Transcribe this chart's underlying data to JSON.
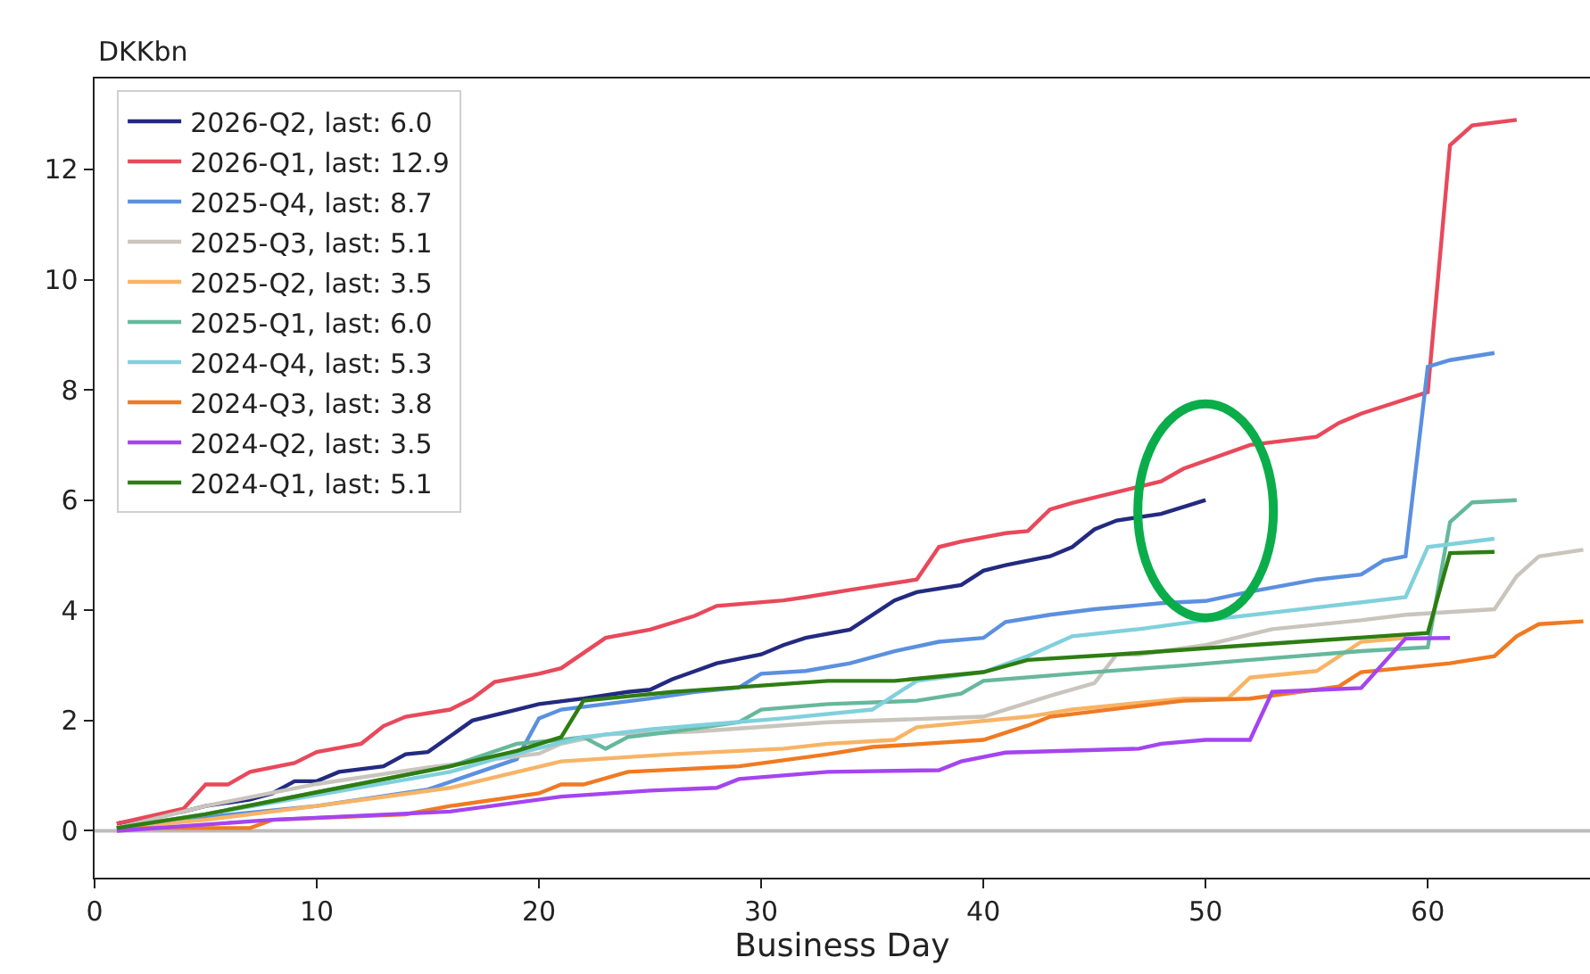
{
  "chart_data": {
    "type": "line",
    "xlabel": "Business Day",
    "ylabel": "DKKbn",
    "xlim": [
      0,
      67.3
    ],
    "ylim": [
      -0.85,
      13.65
    ],
    "xticks": [
      0,
      10,
      20,
      30,
      40,
      50,
      60
    ],
    "yticks": [
      0,
      2,
      4,
      6,
      8,
      10,
      12
    ],
    "grid": false,
    "legend": "top left",
    "line_style": "solid",
    "marker": "none",
    "ref_lines": [
      {
        "axis": "y",
        "value": 0,
        "color": "#bbbbbb"
      }
    ],
    "series": [
      {
        "name": "2026-Q2, last: 6.0",
        "color": "#232a80",
        "x": [
          1,
          4,
          5,
          7,
          8,
          9,
          10,
          11,
          13,
          14,
          15,
          17,
          19,
          20,
          22,
          24,
          25,
          26,
          28,
          30,
          31,
          32,
          34,
          36,
          37,
          39,
          40,
          41,
          43,
          44,
          45,
          46,
          48,
          50
        ],
        "values": [
          0.13,
          0.35,
          0.45,
          0.57,
          0.68,
          0.9,
          0.9,
          1.07,
          1.17,
          1.39,
          1.43,
          2.0,
          2.2,
          2.3,
          2.4,
          2.52,
          2.56,
          2.75,
          3.04,
          3.2,
          3.37,
          3.5,
          3.65,
          4.18,
          4.33,
          4.46,
          4.72,
          4.82,
          4.98,
          5.15,
          5.47,
          5.63,
          5.75,
          6.0
        ]
      },
      {
        "name": "2026-Q1, last: 12.9",
        "color": "#e8495b",
        "x": [
          1,
          4,
          5,
          6,
          7,
          9,
          10,
          12,
          13,
          14,
          16,
          17,
          18,
          20,
          21,
          23,
          25,
          27,
          28,
          31,
          32,
          34,
          37,
          38,
          39,
          41,
          42,
          43,
          44,
          48,
          49,
          52,
          55,
          56,
          57,
          60,
          61,
          62,
          64
        ],
        "values": [
          0.13,
          0.4,
          0.84,
          0.84,
          1.07,
          1.23,
          1.43,
          1.58,
          1.9,
          2.07,
          2.2,
          2.4,
          2.7,
          2.85,
          2.95,
          3.5,
          3.65,
          3.9,
          4.08,
          4.18,
          4.24,
          4.37,
          4.56,
          5.15,
          5.25,
          5.4,
          5.44,
          5.83,
          5.95,
          6.34,
          6.57,
          7.0,
          7.15,
          7.4,
          7.57,
          7.96,
          12.44,
          12.8,
          12.9
        ]
      },
      {
        "name": "2025-Q4, last: 8.7",
        "color": "#5b90e0",
        "x": [
          1,
          5,
          10,
          15,
          19,
          20,
          21,
          23,
          25,
          27,
          29,
          30,
          32,
          34,
          36,
          38,
          40,
          41,
          43,
          45,
          48,
          50,
          52,
          55,
          57,
          58,
          59,
          60,
          61,
          63
        ],
        "values": [
          0.05,
          0.25,
          0.45,
          0.75,
          1.3,
          2.04,
          2.2,
          2.3,
          2.4,
          2.52,
          2.6,
          2.85,
          2.9,
          3.04,
          3.26,
          3.43,
          3.5,
          3.79,
          3.92,
          4.02,
          4.13,
          4.17,
          4.34,
          4.56,
          4.65,
          4.9,
          4.98,
          8.42,
          8.54,
          8.67
        ]
      },
      {
        "name": "2025-Q3, last: 5.1",
        "color": "#c9c5bd",
        "x": [
          1,
          5,
          10,
          15,
          20,
          21,
          23,
          27,
          33,
          40,
          41,
          43,
          45,
          46,
          47,
          50,
          53,
          57,
          59,
          63,
          64,
          65,
          67
        ],
        "values": [
          0.05,
          0.45,
          0.85,
          1.15,
          1.4,
          1.58,
          1.75,
          1.8,
          1.97,
          2.07,
          2.2,
          2.45,
          2.68,
          3.2,
          3.2,
          3.37,
          3.66,
          3.82,
          3.92,
          4.02,
          4.62,
          4.98,
          5.1
        ]
      },
      {
        "name": "2025-Q2, last: 3.5",
        "color": "#f7b466",
        "x": [
          1,
          5,
          10,
          16,
          21,
          26,
          31,
          33,
          36,
          37,
          42,
          44,
          49,
          51,
          52,
          55,
          57,
          59
        ],
        "values": [
          0.05,
          0.2,
          0.45,
          0.78,
          1.26,
          1.39,
          1.49,
          1.58,
          1.65,
          1.88,
          2.07,
          2.2,
          2.4,
          2.4,
          2.78,
          2.9,
          3.43,
          3.5
        ]
      },
      {
        "name": "2025-Q1, last: 6.0",
        "color": "#66b89c",
        "x": [
          1,
          5,
          10,
          16,
          19,
          21,
          22,
          23,
          24,
          26,
          29,
          30,
          33,
          37,
          39,
          40,
          44,
          49,
          52,
          57,
          60,
          61,
          62,
          64
        ],
        "values": [
          0.05,
          0.3,
          0.7,
          1.17,
          1.58,
          1.65,
          1.7,
          1.49,
          1.7,
          1.8,
          1.97,
          2.2,
          2.3,
          2.36,
          2.49,
          2.72,
          2.85,
          3.0,
          3.1,
          3.26,
          3.33,
          5.6,
          5.96,
          6.0
        ]
      },
      {
        "name": "2024-Q4, last: 5.3",
        "color": "#80d0dc",
        "x": [
          1,
          5,
          10,
          16,
          18,
          22,
          25,
          27,
          31,
          35,
          37,
          40,
          42,
          44,
          47,
          50,
          59,
          60,
          63
        ],
        "values": [
          0.05,
          0.3,
          0.65,
          1.07,
          1.3,
          1.7,
          1.84,
          1.91,
          2.04,
          2.2,
          2.72,
          2.88,
          3.17,
          3.53,
          3.66,
          3.82,
          4.24,
          5.15,
          5.3
        ]
      },
      {
        "name": "2024-Q3, last: 3.8",
        "color": "#f07a22",
        "x": [
          1,
          7,
          8,
          14,
          16,
          20,
          21,
          22,
          24,
          29,
          33,
          35,
          40,
          42,
          43,
          49,
          52,
          56,
          57,
          61,
          63,
          64,
          65,
          67
        ],
        "values": [
          0.05,
          0.05,
          0.2,
          0.3,
          0.45,
          0.68,
          0.84,
          0.84,
          1.07,
          1.17,
          1.39,
          1.52,
          1.65,
          1.91,
          2.07,
          2.36,
          2.4,
          2.62,
          2.88,
          3.04,
          3.17,
          3.53,
          3.75,
          3.8
        ]
      },
      {
        "name": "2024-Q2, last: 3.5",
        "color": "#a445f0",
        "x": [
          1,
          8,
          16,
          21,
          25,
          28,
          29,
          33,
          38,
          39,
          41,
          47,
          48,
          50,
          52,
          53,
          57,
          59,
          61
        ],
        "values": [
          0.0,
          0.2,
          0.35,
          0.62,
          0.73,
          0.78,
          0.94,
          1.07,
          1.1,
          1.26,
          1.42,
          1.49,
          1.58,
          1.65,
          1.65,
          2.52,
          2.59,
          3.49,
          3.5
        ]
      },
      {
        "name": "2024-Q1, last: 5.1",
        "color": "#2e7d12",
        "x": [
          1,
          5,
          10,
          16,
          19,
          21,
          22,
          23,
          26,
          33,
          36,
          40,
          42,
          46,
          52,
          60,
          61,
          63
        ],
        "values": [
          0.05,
          0.3,
          0.7,
          1.17,
          1.45,
          1.7,
          2.36,
          2.4,
          2.52,
          2.72,
          2.72,
          2.88,
          3.1,
          3.2,
          3.37,
          3.59,
          5.04,
          5.06
        ]
      }
    ]
  }
}
